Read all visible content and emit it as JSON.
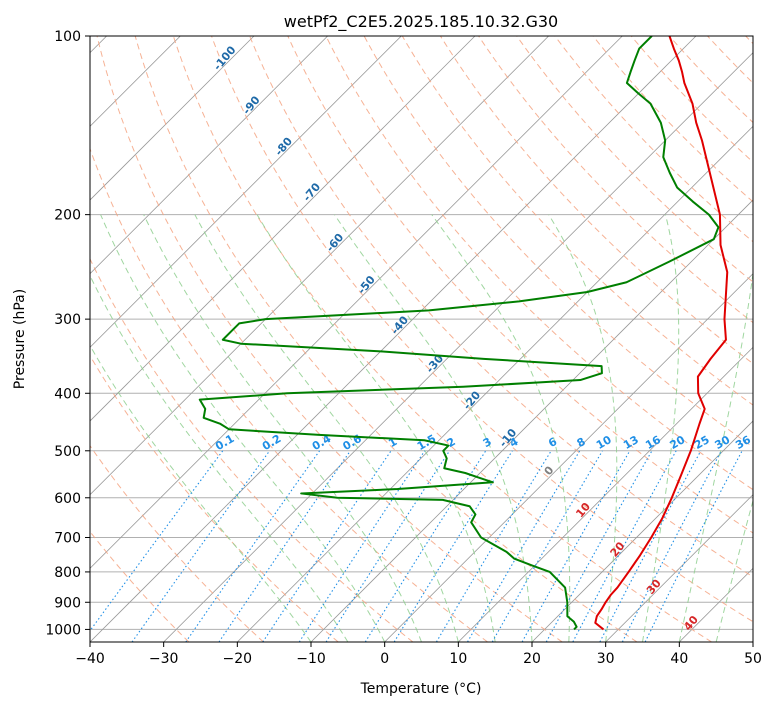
{
  "chart_data": {
    "type": "line",
    "title": "wetPf2_C2E5.2025.185.10.32.G30",
    "xlabel": "Temperature (°C)",
    "ylabel": "Pressure (hPa)",
    "xlim": [
      -40,
      50
    ],
    "ylim": [
      1050,
      100
    ],
    "y_scale": "log",
    "x_ticks": [
      -40,
      -30,
      -20,
      -10,
      0,
      10,
      20,
      30,
      40,
      50
    ],
    "y_ticks": [
      1000,
      900,
      800,
      700,
      600,
      500,
      400,
      300,
      200,
      100
    ],
    "grid": true,
    "series": [
      {
        "color": "#e00000",
        "points": [
          [
            1000,
            28
          ],
          [
            975,
            26
          ],
          [
            950,
            25.3
          ],
          [
            925,
            25
          ],
          [
            900,
            24.6
          ],
          [
            875,
            24.3
          ],
          [
            850,
            24.2
          ],
          [
            800,
            23.6
          ],
          [
            750,
            22.9
          ],
          [
            700,
            22.0
          ],
          [
            650,
            20.9
          ],
          [
            600,
            19.4
          ],
          [
            550,
            17.6
          ],
          [
            500,
            15.6
          ],
          [
            450,
            13.1
          ],
          [
            425,
            11.8
          ],
          [
            400,
            8.8
          ],
          [
            375,
            6.5
          ],
          [
            350,
            5.8
          ],
          [
            325,
            5.3
          ],
          [
            300,
            2.3
          ],
          [
            250,
            -3.7
          ],
          [
            225,
            -8.3
          ],
          [
            200,
            -12.5
          ],
          [
            175,
            -18.3
          ],
          [
            150,
            -25.0
          ],
          [
            140,
            -28.2
          ],
          [
            130,
            -31.3
          ],
          [
            120,
            -35.2
          ],
          [
            115,
            -37.0
          ],
          [
            110,
            -39.0
          ],
          [
            105,
            -41.3
          ],
          [
            100,
            -43.6
          ]
        ]
      },
      {
        "color": "#007f00",
        "points": [
          [
            1000,
            24
          ],
          [
            990,
            24
          ],
          [
            970,
            22.9
          ],
          [
            950,
            21.3
          ],
          [
            900,
            19.4
          ],
          [
            850,
            17.1
          ],
          [
            800,
            12.9
          ],
          [
            780,
            9.6
          ],
          [
            760,
            6.3
          ],
          [
            740,
            4.3
          ],
          [
            700,
            -1.1
          ],
          [
            660,
            -4.5
          ],
          [
            640,
            -5.0
          ],
          [
            620,
            -6.9
          ],
          [
            605,
            -11.4
          ],
          [
            600,
            -26
          ],
          [
            590,
            -31.5
          ],
          [
            580,
            -19
          ],
          [
            565,
            -7
          ],
          [
            555,
            -9.5
          ],
          [
            545,
            -12
          ],
          [
            535,
            -15.5
          ],
          [
            525,
            -16
          ],
          [
            515,
            -16.5
          ],
          [
            500,
            -18
          ],
          [
            490,
            -18
          ],
          [
            480,
            -22
          ],
          [
            470,
            -37
          ],
          [
            460,
            -50
          ],
          [
            450,
            -52
          ],
          [
            440,
            -55
          ],
          [
            425,
            -56
          ],
          [
            410,
            -58
          ],
          [
            400,
            -47
          ],
          [
            390,
            -24
          ],
          [
            380,
            -9
          ],
          [
            370,
            -7
          ],
          [
            360,
            -8
          ],
          [
            350,
            -25
          ],
          [
            340,
            -40
          ],
          [
            330,
            -60
          ],
          [
            325,
            -63
          ],
          [
            315,
            -63
          ],
          [
            305,
            -63
          ],
          [
            300,
            -60
          ],
          [
            290,
            -39
          ],
          [
            280,
            -28
          ],
          [
            270,
            -20
          ],
          [
            260,
            -16
          ],
          [
            240,
            -13
          ],
          [
            220,
            -10
          ],
          [
            210,
            -11
          ],
          [
            200,
            -14
          ],
          [
            190,
            -18
          ],
          [
            180,
            -22
          ],
          [
            170,
            -25
          ],
          [
            160,
            -28
          ],
          [
            150,
            -30
          ],
          [
            140,
            -33
          ],
          [
            130,
            -37
          ],
          [
            125,
            -40
          ],
          [
            120,
            -43
          ],
          [
            115,
            -44
          ],
          [
            110,
            -45
          ],
          [
            105,
            -46
          ],
          [
            100,
            -46
          ]
        ]
      }
    ],
    "annotations": {
      "dry_adiabat_labels": [
        "-100",
        "-90",
        "-80",
        "-70",
        "-60",
        "-50",
        "-40",
        "-30",
        "-20",
        "-10",
        "0",
        "10",
        "20",
        "30",
        "40"
      ],
      "mixing_ratio_labels": [
        "0.1",
        "0.2",
        "0.4",
        "0.6",
        "1",
        "1.5",
        "2",
        "3",
        "4",
        "6",
        "8",
        "10",
        "13",
        "16",
        "20",
        "25",
        "30",
        "36"
      ]
    },
    "colors": {
      "temperature": "#e00000",
      "dewpoint": "#007f00",
      "dry_adiabat_label_cold": "#1f6aa8",
      "dry_adiabat_label_warm": "#d62728",
      "mixing_ratio": "#1f8fe6",
      "dry_adiabat_lines": "#f4a582",
      "moist_adiabat_lines": "#8fcf8f",
      "isotherm_lines": "#999999"
    }
  }
}
